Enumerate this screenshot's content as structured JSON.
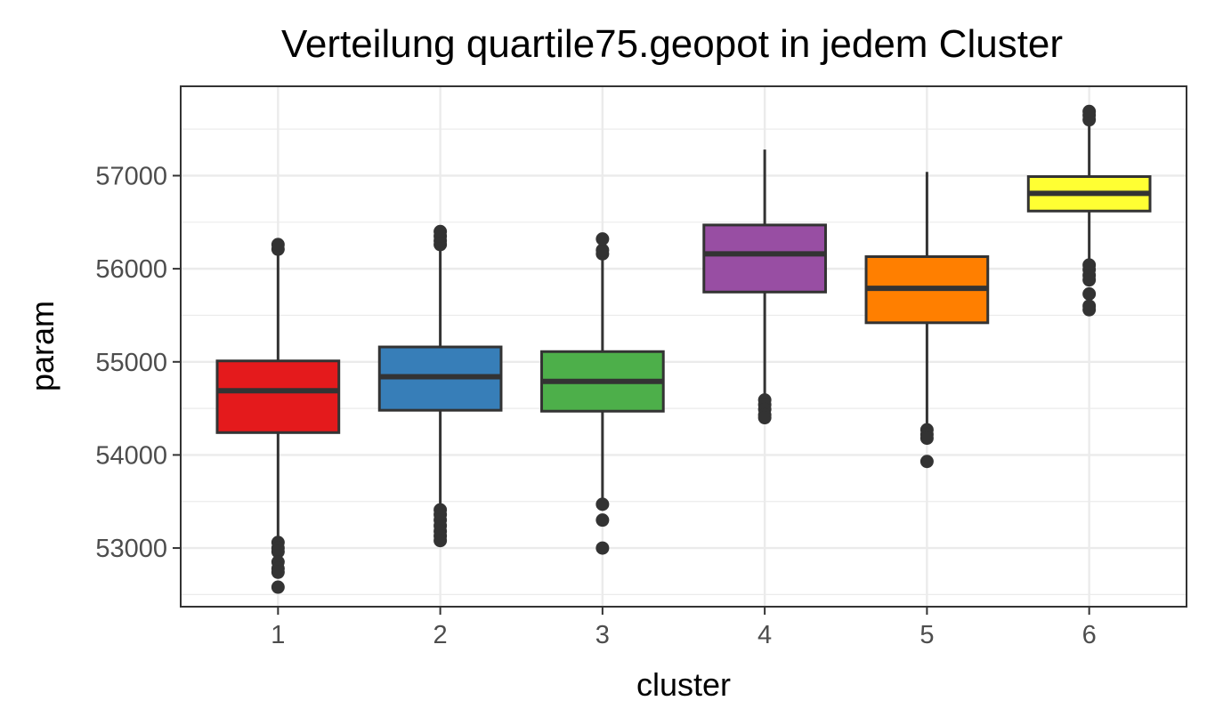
{
  "chart_data": {
    "type": "boxplot",
    "title": "Verteilung quartile75.geopot in jedem Cluster",
    "xlabel": "cluster",
    "ylabel": "param",
    "categories": [
      "1",
      "2",
      "3",
      "4",
      "5",
      "6"
    ],
    "ylim": [
      52370,
      57960
    ],
    "y_ticks": [
      53000,
      54000,
      55000,
      56000,
      57000
    ],
    "y_tick_labels": [
      "53000",
      "54000",
      "55000",
      "56000",
      "57000"
    ],
    "grid": true,
    "legend": "none",
    "series": [
      {
        "category": "1",
        "color": "#e41a1c",
        "q1": 54240,
        "median": 54690,
        "q3": 55010,
        "whisker_low": 53090,
        "whisker_high": 56170,
        "outliers": [
          56210,
          56260,
          53060,
          53000,
          52960,
          52850,
          52780,
          52740,
          52580
        ]
      },
      {
        "category": "2",
        "color": "#377eb8",
        "q1": 54480,
        "median": 54840,
        "q3": 55160,
        "whisker_low": 53460,
        "whisker_high": 56210,
        "outliers": [
          56260,
          56300,
          56350,
          56400,
          53410,
          53360,
          53300,
          53240,
          53180,
          53130,
          53080
        ]
      },
      {
        "category": "3",
        "color": "#4daf4a",
        "q1": 54470,
        "median": 54790,
        "q3": 55110,
        "whisker_low": 53480,
        "whisker_high": 56120,
        "outliers": [
          56160,
          56200,
          56320,
          53470,
          53300,
          53000
        ]
      },
      {
        "category": "4",
        "color": "#984ea3",
        "q1": 55750,
        "median": 56160,
        "q3": 56470,
        "whisker_low": 54610,
        "whisker_high": 57280,
        "outliers": [
          54590,
          54540,
          54490,
          54430,
          54400
        ]
      },
      {
        "category": "5",
        "color": "#ff7f00",
        "q1": 55420,
        "median": 55790,
        "q3": 56130,
        "whisker_low": 54310,
        "whisker_high": 57040,
        "outliers": [
          54270,
          54220,
          54180,
          53930
        ]
      },
      {
        "category": "6",
        "color": "#ffff33",
        "q1": 56620,
        "median": 56810,
        "q3": 56990,
        "whisker_low": 56090,
        "whisker_high": 57530,
        "outliers": [
          57600,
          57650,
          57690,
          56040,
          55990,
          55930,
          55880,
          55730,
          55600,
          55560
        ]
      }
    ]
  }
}
